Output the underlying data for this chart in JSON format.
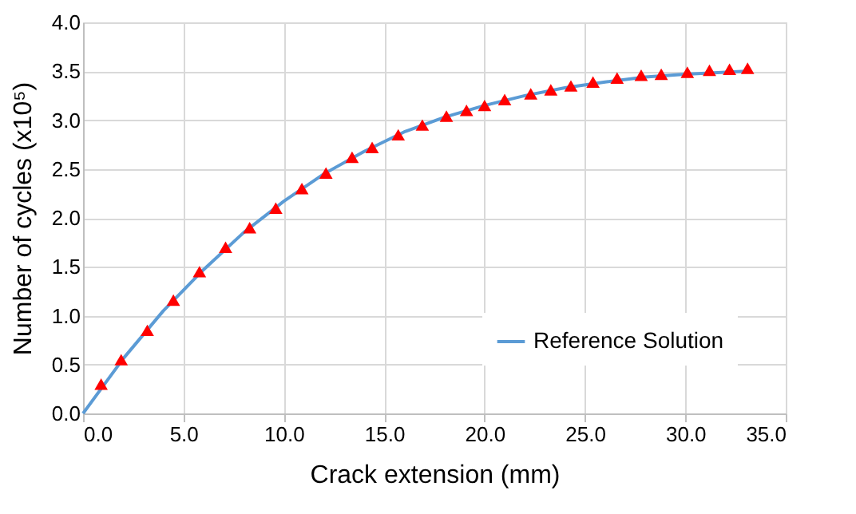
{
  "chart_data": {
    "type": "line",
    "xlabel": "Crack extension (mm)",
    "ylabel": "Number of cycles (x10⁵)",
    "xlim": [
      0,
      35
    ],
    "xticks": [
      {
        "value": 0,
        "label": "0.0"
      },
      {
        "value": 5,
        "label": "5.0"
      },
      {
        "value": 10,
        "label": "10.0"
      },
      {
        "value": 15,
        "label": "15.0"
      },
      {
        "value": 20,
        "label": "20.0"
      },
      {
        "value": 25,
        "label": "25.0"
      },
      {
        "value": 30,
        "label": "30.0"
      },
      {
        "value": 35,
        "label": "35.0"
      }
    ],
    "ylim": [
      0,
      4
    ],
    "yticks": [
      {
        "value": 0,
        "label": "0.0"
      },
      {
        "value": 0.5,
        "label": "0.5"
      },
      {
        "value": 1,
        "label": "1.0"
      },
      {
        "value": 1.5,
        "label": "1.5"
      },
      {
        "value": 2,
        "label": "2.0"
      },
      {
        "value": 2.5,
        "label": "2.5"
      },
      {
        "value": 3,
        "label": "3.0"
      },
      {
        "value": 3.5,
        "label": "3.5"
      },
      {
        "value": 4,
        "label": "4.0"
      }
    ],
    "grid": true,
    "legend": "bottom right",
    "series": [
      {
        "name": "Reference Solution",
        "marker": "none",
        "color": "#5b9bd5",
        "x": [
          0,
          2,
          4,
          6,
          8,
          10,
          12,
          14,
          16,
          18,
          20,
          22,
          24,
          26,
          28,
          30,
          33
        ],
        "values": [
          0,
          0.56,
          1.05,
          1.47,
          1.85,
          2.17,
          2.45,
          2.68,
          2.88,
          3.03,
          3.15,
          3.25,
          3.33,
          3.39,
          3.44,
          3.47,
          3.5
        ]
      },
      {
        "type": "scatter",
        "marker": "triangle",
        "color": "#ff0000",
        "x": [
          0.9,
          1.9,
          3.2,
          4.5,
          5.8,
          7.1,
          8.3,
          9.6,
          10.9,
          12.1,
          13.4,
          14.4,
          15.7,
          16.9,
          18.1,
          19.1,
          20.0,
          21.0,
          22.3,
          23.3,
          24.3,
          25.4,
          26.6,
          27.8,
          28.8,
          30.1,
          31.2,
          32.2,
          33.1
        ],
        "values": [
          0.3,
          0.55,
          0.85,
          1.16,
          1.45,
          1.7,
          1.9,
          2.1,
          2.3,
          2.46,
          2.62,
          2.72,
          2.85,
          2.95,
          3.04,
          3.1,
          3.15,
          3.21,
          3.27,
          3.31,
          3.35,
          3.39,
          3.43,
          3.46,
          3.47,
          3.49,
          3.51,
          3.52,
          3.53
        ]
      }
    ]
  }
}
